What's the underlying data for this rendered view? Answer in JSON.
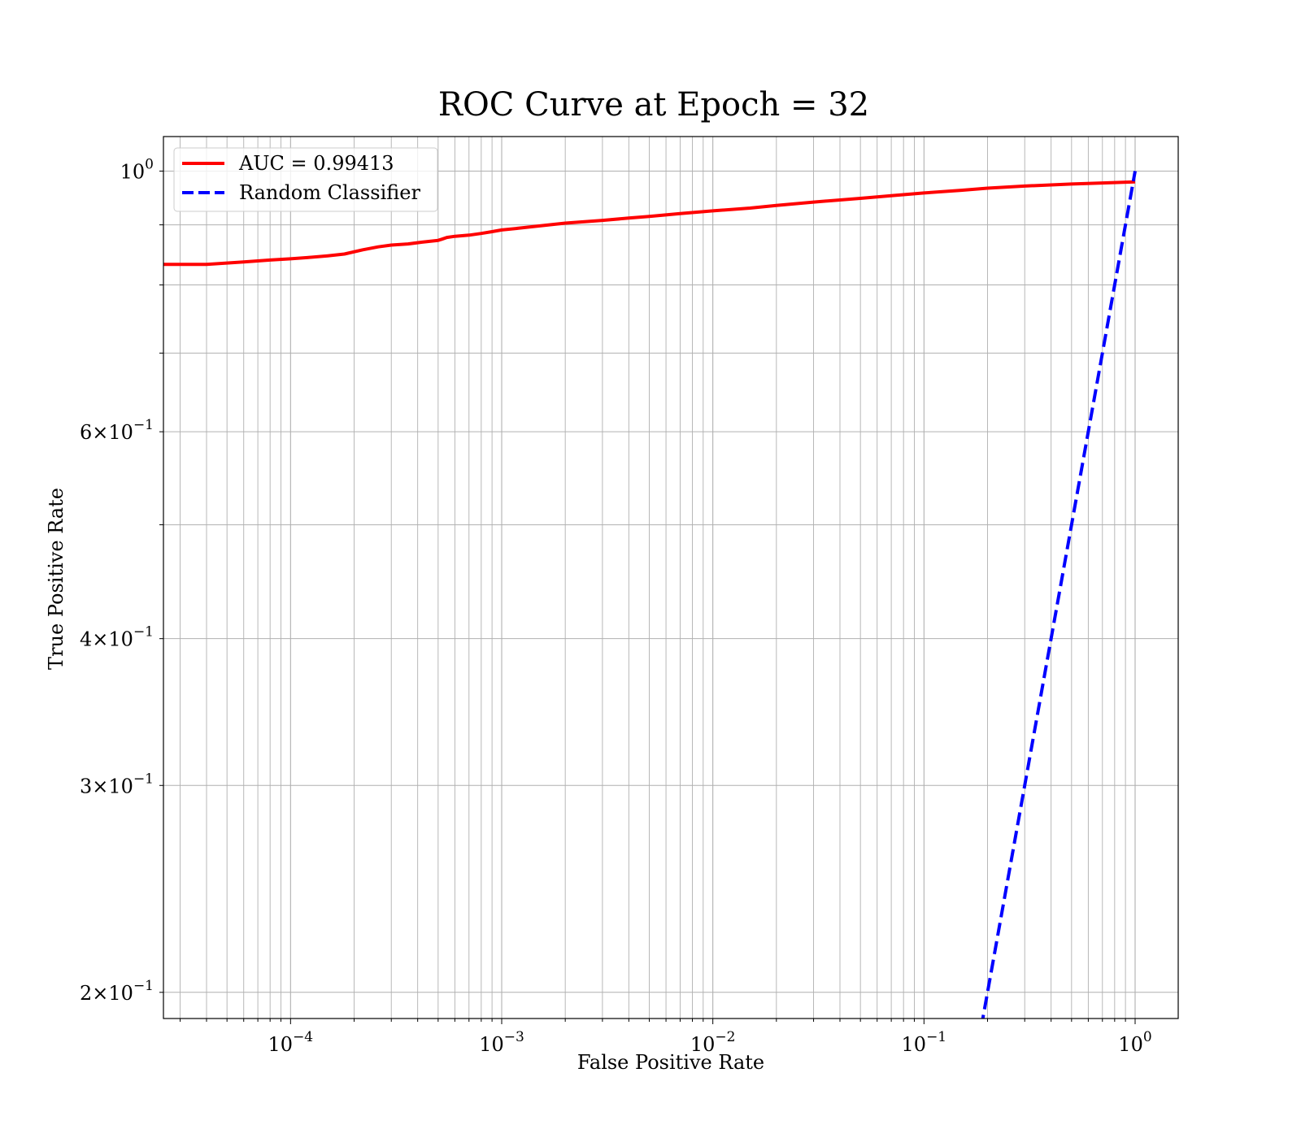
{
  "chart_data": {
    "type": "line",
    "title": "ROC Curve at Epoch = 32",
    "xlabel": "False Positive Rate",
    "ylabel": "True Positive Rate",
    "xscale": "log",
    "yscale": "log",
    "xlim": [
      2.5e-05,
      1.6
    ],
    "ylim": [
      0.19,
      1.07
    ],
    "grid": true,
    "grid_minor": true,
    "legend_position": "top-left",
    "x_ticks": [
      {
        "value": 0.0001,
        "base": "10",
        "exp": "−4"
      },
      {
        "value": 0.001,
        "base": "10",
        "exp": "−3"
      },
      {
        "value": 0.01,
        "base": "10",
        "exp": "−2"
      },
      {
        "value": 0.1,
        "base": "10",
        "exp": "−1"
      },
      {
        "value": 1,
        "base": "10",
        "exp": "0"
      }
    ],
    "y_ticks": [
      {
        "value": 1.0,
        "mant": "",
        "base": "10",
        "exp": "0"
      },
      {
        "value": 0.6,
        "mant": "6",
        "base": "10",
        "exp": "−1"
      },
      {
        "value": 0.4,
        "mant": "4",
        "base": "10",
        "exp": "−1"
      },
      {
        "value": 0.3,
        "mant": "3",
        "base": "10",
        "exp": "−1"
      },
      {
        "value": 0.2,
        "mant": "2",
        "base": "10",
        "exp": "−1"
      }
    ],
    "series": [
      {
        "name": "AUC = 0.99413",
        "color": "#ff0000",
        "style": "solid",
        "x": [
          2.5e-05,
          4e-05,
          6e-05,
          8e-05,
          0.0001,
          0.00012,
          0.00015,
          0.00018,
          0.00022,
          0.00026,
          0.0003,
          0.00036,
          0.00042,
          0.0005,
          0.00052,
          0.00055,
          0.0006,
          0.0007,
          0.0008,
          0.0009,
          0.001,
          0.0012,
          0.0015,
          0.002,
          0.003,
          0.004,
          0.005,
          0.007,
          0.01,
          0.015,
          0.02,
          0.03,
          0.05,
          0.07,
          0.1,
          0.15,
          0.2,
          0.3,
          0.5,
          0.7,
          1.0
        ],
        "y": [
          0.833,
          0.833,
          0.837,
          0.84,
          0.842,
          0.844,
          0.847,
          0.85,
          0.857,
          0.862,
          0.865,
          0.867,
          0.87,
          0.873,
          0.875,
          0.878,
          0.88,
          0.882,
          0.885,
          0.888,
          0.891,
          0.894,
          0.898,
          0.903,
          0.908,
          0.912,
          0.915,
          0.92,
          0.925,
          0.93,
          0.935,
          0.941,
          0.948,
          0.953,
          0.958,
          0.963,
          0.967,
          0.971,
          0.975,
          0.977,
          0.979
        ]
      },
      {
        "name": "Random Classifier",
        "color": "#0000ff",
        "style": "dashed",
        "x": [
          0.18,
          1.0
        ],
        "y": [
          0.18,
          1.0
        ]
      }
    ]
  }
}
